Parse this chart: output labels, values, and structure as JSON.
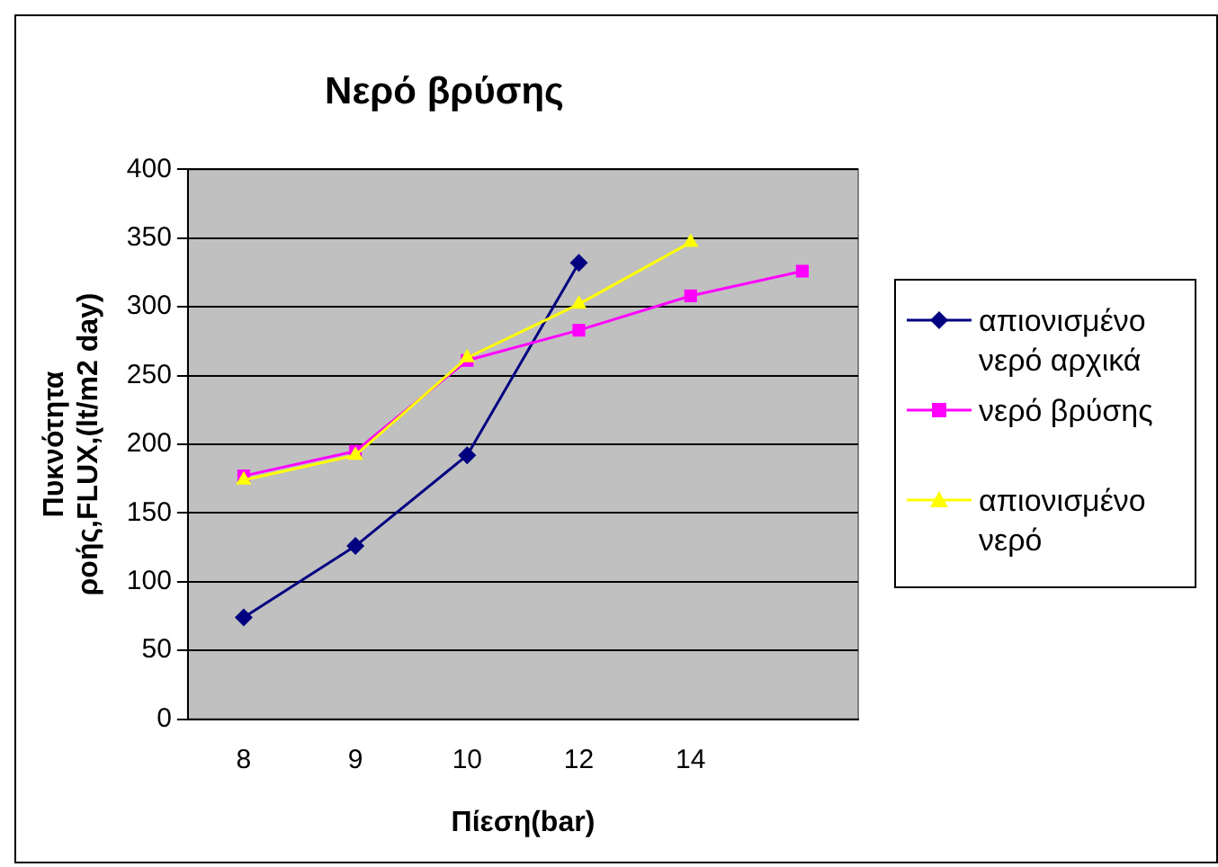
{
  "chart_data": {
    "type": "line",
    "title": "Νερό βρύσης",
    "xlabel": "Πίεση(bar)",
    "ylabel": "Πυκνότητα ροής,FLUX,(lt/m2 day)",
    "categories": [
      "8",
      "9",
      "10",
      "12",
      "14",
      null
    ],
    "series": [
      {
        "name": "απιονισμένο νερό αρχικά",
        "color": "#000080",
        "marker": "diamond",
        "values": [
          74,
          126,
          192,
          332,
          null,
          null
        ]
      },
      {
        "name": "νερό βρύσης",
        "color": "#ff00ff",
        "marker": "square",
        "values": [
          177,
          195,
          261,
          283,
          308,
          326
        ]
      },
      {
        "name": "απιονισμένο νερό",
        "color": "#ffff00",
        "marker": "triangle",
        "values": [
          174,
          192,
          263,
          302,
          347,
          null
        ]
      }
    ],
    "ylim": [
      0,
      400
    ],
    "yticks": [
      0,
      50,
      100,
      150,
      200,
      250,
      300,
      350,
      400
    ],
    "grid": "y",
    "legend": "right",
    "line_style": "solid"
  }
}
